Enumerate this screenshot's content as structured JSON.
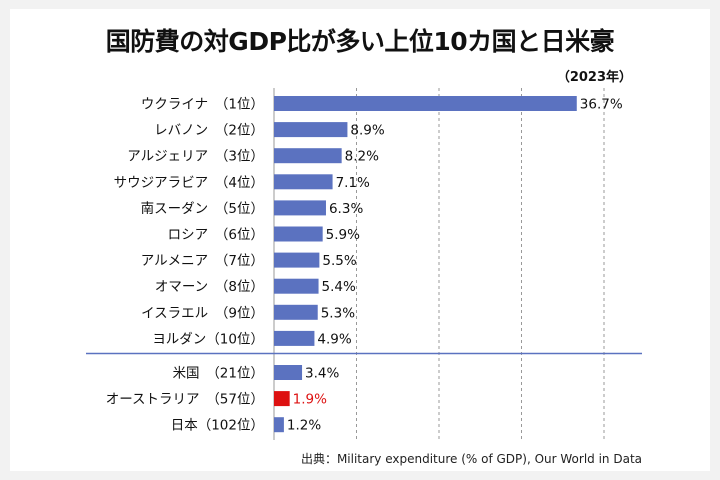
{
  "chart_data": {
    "type": "bar",
    "orientation": "horizontal",
    "title": "国防費の対GDP比が多い上位10カ国と日米豪",
    "subtitle": "（2023年）",
    "source": "出典：Military expenditure (% of GDP), Our World in Data",
    "xlim": [
      0,
      40
    ],
    "grid": true,
    "categories": [
      "ウクライナ　（1位）",
      "レバノン　（2位）",
      "アルジェリア　（3位）",
      "サウジアラビア　（4位）",
      "南スーダン　（5位）",
      "ロシア　（6位）",
      "アルメニア　（7位）",
      "オマーン　（8位）",
      "イスラエル　（9位）",
      "ヨルダン（10位）",
      "米国　（21位）",
      "オーストラリア　（57位）",
      "日本（102位）"
    ],
    "values": [
      36.7,
      8.9,
      8.2,
      7.1,
      6.3,
      5.9,
      5.5,
      5.4,
      5.3,
      4.9,
      3.4,
      1.9,
      1.2
    ],
    "value_labels": [
      "36.7%",
      "8.9%",
      "8.2%",
      "7.1%",
      "6.3%",
      "5.9%",
      "5.5%",
      "5.4%",
      "5.3%",
      "4.9%",
      "3.4%",
      "1.9%",
      "1.2%"
    ],
    "highlight_index": 11,
    "separator_after_index": 9,
    "colors": {
      "bar": "#5b72c0",
      "highlight": "#dd1111",
      "grid": "#999999",
      "separator": "#5b72c0",
      "text": "#111111"
    }
  }
}
